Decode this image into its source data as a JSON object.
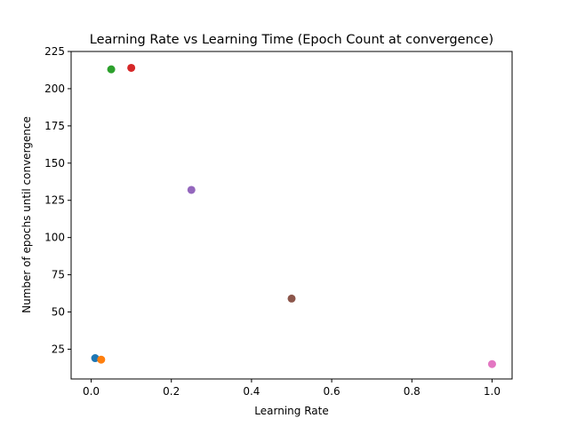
{
  "chart_data": {
    "type": "scatter",
    "title": "Learning Rate vs Learning Time (Epoch Count at convergence)",
    "xlabel": "Learning Rate",
    "ylabel": "Number of epochs until convergence",
    "xlim": [
      -0.05,
      1.05
    ],
    "ylim": [
      5,
      225
    ],
    "xticks": [
      0.0,
      0.2,
      0.4,
      0.6,
      0.8,
      1.0
    ],
    "xtick_labels": [
      "0.0",
      "0.2",
      "0.4",
      "0.6",
      "0.8",
      "1.0"
    ],
    "yticks": [
      25,
      50,
      75,
      100,
      125,
      150,
      175,
      200,
      225
    ],
    "ytick_labels": [
      "25",
      "50",
      "75",
      "100",
      "125",
      "150",
      "175",
      "200",
      "225"
    ],
    "grid": false,
    "points": [
      {
        "x": 0.01,
        "y": 19,
        "color": "#1f77b4"
      },
      {
        "x": 0.025,
        "y": 18,
        "color": "#ff7f0e"
      },
      {
        "x": 0.05,
        "y": 213,
        "color": "#2ca02c"
      },
      {
        "x": 0.1,
        "y": 214,
        "color": "#d62728"
      },
      {
        "x": 0.25,
        "y": 132,
        "color": "#9467bd"
      },
      {
        "x": 0.5,
        "y": 59,
        "color": "#8c564b"
      },
      {
        "x": 1.0,
        "y": 15,
        "color": "#e377c2"
      }
    ]
  }
}
